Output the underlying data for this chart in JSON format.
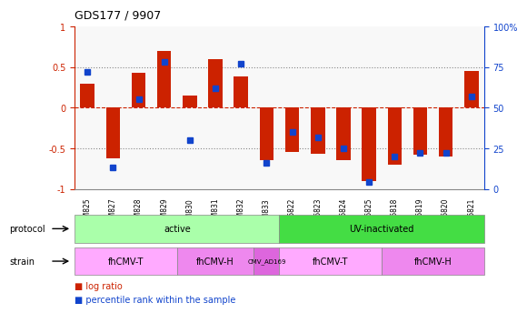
{
  "title": "GDS177 / 9907",
  "samples": [
    "GSM825",
    "GSM827",
    "GSM828",
    "GSM829",
    "GSM830",
    "GSM831",
    "GSM832",
    "GSM833",
    "GSM6822",
    "GSM6823",
    "GSM6824",
    "GSM6825",
    "GSM6818",
    "GSM6819",
    "GSM6820",
    "GSM6821"
  ],
  "log_ratio": [
    0.3,
    -0.62,
    0.43,
    0.7,
    0.15,
    0.6,
    0.38,
    -0.65,
    -0.55,
    -0.57,
    -0.65,
    -0.9,
    -0.7,
    -0.58,
    -0.6,
    0.45
  ],
  "percentile": [
    72,
    13,
    55,
    78,
    30,
    62,
    77,
    16,
    35,
    32,
    25,
    4,
    20,
    22,
    22,
    57
  ],
  "bar_color": "#cc2200",
  "dot_color": "#1144cc",
  "grid_color": "#aaaaaa",
  "zero_line_color": "#cc2200",
  "protocol_spans": [
    {
      "label": "active",
      "start": 0,
      "end": 8,
      "color": "#aaffaa"
    },
    {
      "label": "UV-inactivated",
      "start": 8,
      "end": 16,
      "color": "#44dd44"
    }
  ],
  "strain_spans": [
    {
      "label": "fhCMV-T",
      "start": 0,
      "end": 4,
      "color": "#ffaaff"
    },
    {
      "label": "fhCMV-H",
      "start": 4,
      "end": 7,
      "color": "#ee88ee"
    },
    {
      "label": "CMV_AD169",
      "start": 7,
      "end": 8,
      "color": "#dd66dd"
    },
    {
      "label": "fhCMV-T",
      "start": 8,
      "end": 12,
      "color": "#ffaaff"
    },
    {
      "label": "fhCMV-H",
      "start": 12,
      "end": 16,
      "color": "#ee88ee"
    }
  ],
  "ylim": [
    -1.0,
    1.0
  ],
  "yticks": [
    -1.0,
    -0.5,
    0.0,
    0.5,
    1.0
  ],
  "ytick_labels_left": [
    "-1",
    "-0.5",
    "0",
    "0.5",
    "1"
  ],
  "ytick_labels_right": [
    "0",
    "25",
    "50",
    "75",
    "100%"
  ],
  "dotted_lines": [
    -0.5,
    0.0,
    0.5
  ],
  "legend_items": [
    {
      "color": "#cc2200",
      "label": "log ratio"
    },
    {
      "color": "#1144cc",
      "label": "percentile rank within the sample"
    }
  ]
}
